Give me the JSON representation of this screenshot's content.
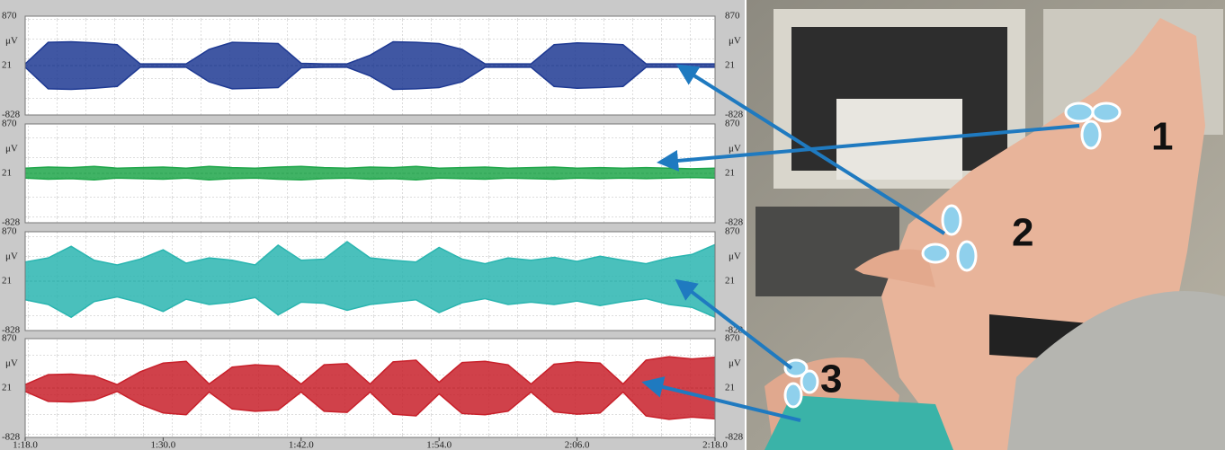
{
  "chart_data": [
    {
      "type": "band",
      "y_unit": "μV",
      "x": [
        78,
        80,
        82,
        84,
        86,
        88,
        90,
        92,
        94,
        96,
        98,
        100,
        102,
        104,
        106,
        108,
        110,
        112,
        114,
        116,
        118,
        120,
        122,
        124,
        126,
        128,
        130,
        132,
        134,
        136,
        138
      ],
      "xlim": [
        78,
        138
      ],
      "ylim": [
        -828,
        870
      ],
      "yticks": [
        -828,
        21,
        870
      ],
      "series": [
        {
          "color": "#1f3a93",
          "values": [
            50,
            420,
            430,
            410,
            380,
            50,
            50,
            50,
            300,
            420,
            410,
            400,
            60,
            50,
            50,
            200,
            430,
            420,
            400,
            300,
            50,
            50,
            50,
            380,
            410,
            400,
            380,
            50,
            50,
            50,
            50
          ]
        },
        {
          "color": "#1f3a93",
          "values": [
            -8,
            -378,
            -388,
            -368,
            -338,
            -8,
            -8,
            -8,
            -258,
            -378,
            -368,
            -358,
            -18,
            -8,
            -8,
            -158,
            -388,
            -378,
            -358,
            -258,
            -8,
            -8,
            -8,
            -338,
            -368,
            -358,
            -338,
            -8,
            -8,
            -8,
            -8
          ]
        }
      ]
    },
    {
      "type": "band",
      "y_unit": "μV",
      "x": [
        78,
        80,
        82,
        84,
        86,
        88,
        90,
        92,
        94,
        96,
        98,
        100,
        102,
        104,
        106,
        108,
        110,
        112,
        114,
        116,
        118,
        120,
        122,
        124,
        126,
        128,
        130,
        132,
        134,
        136,
        138
      ],
      "xlim": [
        78,
        138
      ],
      "ylim": [
        -828,
        870
      ],
      "yticks": [
        -828,
        21,
        870
      ],
      "series": [
        {
          "color": "#1fa64a",
          "values": [
            110,
            130,
            120,
            140,
            110,
            120,
            130,
            110,
            140,
            120,
            110,
            130,
            140,
            120,
            110,
            130,
            120,
            140,
            110,
            120,
            130,
            110,
            120,
            130,
            110,
            120,
            110,
            120,
            110,
            100,
            110
          ]
        },
        {
          "color": "#1fa64a",
          "values": [
            -60,
            -80,
            -70,
            -90,
            -60,
            -70,
            -80,
            -60,
            -90,
            -70,
            -60,
            -80,
            -90,
            -70,
            -60,
            -80,
            -70,
            -90,
            -60,
            -70,
            -80,
            -60,
            -70,
            -80,
            -60,
            -70,
            -60,
            -70,
            -60,
            -50,
            -60
          ]
        }
      ]
    },
    {
      "type": "band",
      "y_unit": "μV",
      "x": [
        78,
        80,
        82,
        84,
        86,
        88,
        90,
        92,
        94,
        96,
        98,
        100,
        102,
        104,
        106,
        108,
        110,
        112,
        114,
        116,
        118,
        120,
        122,
        124,
        126,
        128,
        130,
        132,
        134,
        136,
        138
      ],
      "xlim": [
        78,
        138
      ],
      "ylim": [
        -828,
        870
      ],
      "yticks": [
        -828,
        21,
        870
      ],
      "series": [
        {
          "color": "#2ab5b0",
          "values": [
            350,
            420,
            620,
            380,
            300,
            400,
            560,
            330,
            420,
            380,
            300,
            640,
            380,
            400,
            700,
            420,
            380,
            350,
            600,
            400,
            320,
            420,
            380,
            430,
            360,
            450,
            380,
            320,
            420,
            480,
            650
          ]
        },
        {
          "color": "#2ab5b0",
          "values": [
            -300,
            -380,
            -600,
            -330,
            -250,
            -350,
            -500,
            -290,
            -380,
            -340,
            -260,
            -560,
            -340,
            -360,
            -480,
            -380,
            -340,
            -300,
            -520,
            -350,
            -280,
            -380,
            -340,
            -380,
            -320,
            -400,
            -330,
            -280,
            -380,
            -430,
            -600
          ]
        }
      ]
    },
    {
      "type": "band",
      "y_unit": "μV",
      "x": [
        78,
        80,
        82,
        84,
        86,
        88,
        90,
        92,
        94,
        96,
        98,
        100,
        102,
        104,
        106,
        108,
        110,
        112,
        114,
        116,
        118,
        120,
        122,
        124,
        126,
        128,
        130,
        132,
        134,
        136,
        138
      ],
      "xlim": [
        78,
        138
      ],
      "ylim": [
        -828,
        870
      ],
      "yticks": [
        -828,
        21,
        870
      ],
      "xticks": [
        {
          "value": 78,
          "label": "1:18.0"
        },
        {
          "value": 90,
          "label": "1:30.0"
        },
        {
          "value": 102,
          "label": "1:42.0"
        },
        {
          "value": 114,
          "label": "1:54.0"
        },
        {
          "value": 126,
          "label": "2:06.0"
        },
        {
          "value": 138,
          "label": "2:18.0"
        }
      ],
      "series": [
        {
          "color": "#c8202a",
          "values": [
            80,
            250,
            260,
            230,
            80,
            300,
            450,
            480,
            90,
            380,
            420,
            400,
            90,
            420,
            440,
            90,
            470,
            500,
            120,
            460,
            480,
            420,
            90,
            430,
            470,
            450,
            90,
            500,
            560,
            520,
            550
          ]
        },
        {
          "color": "#c8202a",
          "values": [
            -38,
            -208,
            -218,
            -188,
            -38,
            -258,
            -408,
            -438,
            -48,
            -338,
            -378,
            -358,
            -48,
            -378,
            -398,
            -48,
            -428,
            -458,
            -78,
            -418,
            -438,
            -378,
            -48,
            -388,
            -428,
            -408,
            -48,
            -458,
            -518,
            -478,
            -508
          ]
        }
      ]
    }
  ],
  "photo": {
    "labels": [
      "1",
      "2",
      "3"
    ]
  }
}
